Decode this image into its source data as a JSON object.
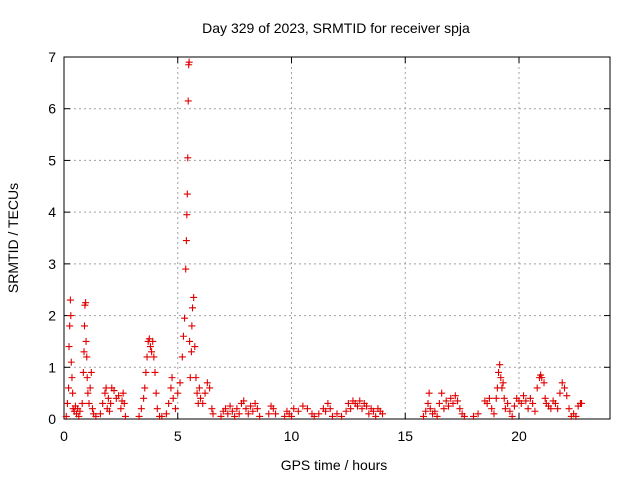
{
  "chart_data": {
    "type": "scatter",
    "title": "Day 329 of 2023, SRMTID for receiver spja",
    "xlabel": "GPS time / hours",
    "ylabel": "SRMTID / TECUs",
    "xlim": [
      0,
      24
    ],
    "ylim": [
      0,
      7
    ],
    "xticks": [
      0,
      5,
      10,
      15,
      20
    ],
    "yticks": [
      0,
      1,
      2,
      3,
      4,
      5,
      6,
      7
    ],
    "grid": true,
    "marker": "plus",
    "color": "#e00000",
    "series": [
      {
        "name": "SRMTID",
        "points": [
          [
            0.1,
            0.05
          ],
          [
            0.15,
            0.3
          ],
          [
            0.2,
            0.6
          ],
          [
            0.22,
            1.4
          ],
          [
            0.25,
            1.8
          ],
          [
            0.28,
            2.3
          ],
          [
            0.3,
            2.0
          ],
          [
            0.32,
            1.1
          ],
          [
            0.35,
            0.8
          ],
          [
            0.38,
            0.5
          ],
          [
            0.4,
            0.2
          ],
          [
            0.45,
            0.15
          ],
          [
            0.5,
            0.25
          ],
          [
            0.55,
            0.1
          ],
          [
            0.6,
            0.2
          ],
          [
            0.65,
            0.05
          ],
          [
            0.7,
            0.15
          ],
          [
            0.8,
            0.3
          ],
          [
            0.85,
            0.9
          ],
          [
            0.88,
            1.3
          ],
          [
            0.9,
            1.8
          ],
          [
            0.92,
            2.2
          ],
          [
            0.95,
            2.25
          ],
          [
            0.97,
            1.5
          ],
          [
            1.0,
            1.2
          ],
          [
            1.02,
            0.8
          ],
          [
            1.05,
            0.5
          ],
          [
            1.1,
            0.3
          ],
          [
            1.15,
            0.6
          ],
          [
            1.2,
            0.9
          ],
          [
            1.25,
            0.2
          ],
          [
            1.3,
            0.1
          ],
          [
            1.4,
            0.05
          ],
          [
            1.6,
            0.1
          ],
          [
            1.7,
            0.3
          ],
          [
            1.8,
            0.5
          ],
          [
            1.85,
            0.6
          ],
          [
            1.9,
            0.2
          ],
          [
            1.95,
            0.4
          ],
          [
            2.0,
            0.15
          ],
          [
            2.05,
            0.3
          ],
          [
            2.1,
            0.6
          ],
          [
            2.2,
            0.55
          ],
          [
            2.3,
            0.4
          ],
          [
            2.4,
            0.45
          ],
          [
            2.5,
            0.2
          ],
          [
            2.55,
            0.35
          ],
          [
            2.6,
            0.5
          ],
          [
            2.65,
            0.3
          ],
          [
            2.7,
            0.05
          ],
          [
            3.3,
            0.05
          ],
          [
            3.4,
            0.2
          ],
          [
            3.5,
            0.4
          ],
          [
            3.55,
            0.6
          ],
          [
            3.6,
            0.9
          ],
          [
            3.65,
            1.2
          ],
          [
            3.7,
            1.5
          ],
          [
            3.75,
            1.55
          ],
          [
            3.8,
            1.4
          ],
          [
            3.85,
            1.3
          ],
          [
            3.9,
            1.5
          ],
          [
            3.95,
            1.2
          ],
          [
            4.0,
            0.9
          ],
          [
            4.05,
            0.5
          ],
          [
            4.1,
            0.2
          ],
          [
            4.2,
            0.05
          ],
          [
            4.3,
            0.05
          ],
          [
            4.5,
            0.1
          ],
          [
            4.6,
            0.3
          ],
          [
            4.7,
            0.6
          ],
          [
            4.75,
            0.8
          ],
          [
            4.8,
            0.4
          ],
          [
            4.9,
            0.2
          ],
          [
            5.0,
            0.5
          ],
          [
            5.1,
            0.7
          ],
          [
            5.2,
            1.2
          ],
          [
            5.25,
            1.6
          ],
          [
            5.3,
            1.95
          ],
          [
            5.35,
            2.9
          ],
          [
            5.38,
            3.45
          ],
          [
            5.4,
            3.95
          ],
          [
            5.42,
            4.35
          ],
          [
            5.44,
            5.05
          ],
          [
            5.46,
            6.15
          ],
          [
            5.48,
            6.85
          ],
          [
            5.5,
            6.9
          ],
          [
            5.52,
            1.5
          ],
          [
            5.55,
            0.8
          ],
          [
            5.6,
            1.3
          ],
          [
            5.62,
            1.8
          ],
          [
            5.65,
            2.15
          ],
          [
            5.7,
            2.35
          ],
          [
            5.75,
            1.4
          ],
          [
            5.8,
            0.8
          ],
          [
            5.85,
            0.5
          ],
          [
            5.9,
            0.3
          ],
          [
            5.95,
            0.6
          ],
          [
            6.0,
            0.4
          ],
          [
            6.1,
            0.3
          ],
          [
            6.2,
            0.5
          ],
          [
            6.3,
            0.7
          ],
          [
            6.4,
            0.6
          ],
          [
            6.5,
            0.2
          ],
          [
            6.55,
            0.1
          ],
          [
            6.9,
            0.05
          ],
          [
            7.0,
            0.15
          ],
          [
            7.1,
            0.2
          ],
          [
            7.2,
            0.1
          ],
          [
            7.3,
            0.25
          ],
          [
            7.4,
            0.15
          ],
          [
            7.5,
            0.05
          ],
          [
            7.6,
            0.2
          ],
          [
            7.7,
            0.1
          ],
          [
            7.8,
            0.3
          ],
          [
            7.9,
            0.35
          ],
          [
            8.0,
            0.2
          ],
          [
            8.1,
            0.1
          ],
          [
            8.2,
            0.25
          ],
          [
            8.3,
            0.15
          ],
          [
            8.4,
            0.3
          ],
          [
            8.5,
            0.2
          ],
          [
            8.6,
            0.05
          ],
          [
            9.0,
            0.1
          ],
          [
            9.1,
            0.25
          ],
          [
            9.2,
            0.2
          ],
          [
            9.3,
            0.1
          ],
          [
            9.7,
            0.05
          ],
          [
            9.8,
            0.15
          ],
          [
            9.9,
            0.1
          ],
          [
            10.0,
            0.05
          ],
          [
            10.1,
            0.2
          ],
          [
            10.3,
            0.15
          ],
          [
            10.5,
            0.25
          ],
          [
            10.7,
            0.2
          ],
          [
            10.9,
            0.1
          ],
          [
            11.0,
            0.05
          ],
          [
            11.2,
            0.1
          ],
          [
            11.4,
            0.2
          ],
          [
            11.5,
            0.15
          ],
          [
            11.6,
            0.3
          ],
          [
            11.7,
            0.2
          ],
          [
            11.8,
            0.05
          ],
          [
            12.0,
            0.1
          ],
          [
            12.2,
            0.05
          ],
          [
            12.4,
            0.15
          ],
          [
            12.5,
            0.3
          ],
          [
            12.6,
            0.2
          ],
          [
            12.7,
            0.35
          ],
          [
            12.8,
            0.3
          ],
          [
            12.9,
            0.25
          ],
          [
            13.0,
            0.35
          ],
          [
            13.1,
            0.2
          ],
          [
            13.2,
            0.3
          ],
          [
            13.3,
            0.25
          ],
          [
            13.4,
            0.1
          ],
          [
            13.5,
            0.2
          ],
          [
            13.6,
            0.15
          ],
          [
            13.7,
            0.05
          ],
          [
            13.8,
            0.2
          ],
          [
            13.9,
            0.15
          ],
          [
            14.0,
            0.1
          ],
          [
            15.8,
            0.05
          ],
          [
            15.9,
            0.15
          ],
          [
            16.0,
            0.3
          ],
          [
            16.05,
            0.5
          ],
          [
            16.1,
            0.2
          ],
          [
            16.2,
            0.1
          ],
          [
            16.3,
            0.15
          ],
          [
            16.4,
            0.05
          ],
          [
            16.5,
            0.3
          ],
          [
            16.6,
            0.5
          ],
          [
            16.7,
            0.2
          ],
          [
            16.8,
            0.35
          ],
          [
            16.9,
            0.25
          ],
          [
            17.0,
            0.4
          ],
          [
            17.1,
            0.3
          ],
          [
            17.2,
            0.45
          ],
          [
            17.3,
            0.35
          ],
          [
            17.4,
            0.2
          ],
          [
            17.5,
            0.1
          ],
          [
            17.6,
            0.05
          ],
          [
            18.0,
            0.05
          ],
          [
            18.2,
            0.1
          ],
          [
            18.5,
            0.35
          ],
          [
            18.6,
            0.3
          ],
          [
            18.7,
            0.4
          ],
          [
            18.8,
            0.2
          ],
          [
            18.9,
            0.1
          ],
          [
            19.0,
            0.4
          ],
          [
            19.05,
            0.6
          ],
          [
            19.1,
            0.9
          ],
          [
            19.15,
            1.05
          ],
          [
            19.2,
            0.8
          ],
          [
            19.25,
            0.6
          ],
          [
            19.3,
            0.7
          ],
          [
            19.35,
            0.4
          ],
          [
            19.4,
            0.2
          ],
          [
            19.5,
            0.3
          ],
          [
            19.6,
            0.15
          ],
          [
            19.7,
            0.05
          ],
          [
            19.8,
            0.25
          ],
          [
            19.9,
            0.4
          ],
          [
            20.0,
            0.35
          ],
          [
            20.1,
            0.3
          ],
          [
            20.2,
            0.45
          ],
          [
            20.3,
            0.35
          ],
          [
            20.4,
            0.2
          ],
          [
            20.5,
            0.4
          ],
          [
            20.6,
            0.3
          ],
          [
            20.7,
            0.15
          ],
          [
            20.8,
            0.6
          ],
          [
            20.9,
            0.8
          ],
          [
            20.95,
            0.85
          ],
          [
            21.0,
            0.8
          ],
          [
            21.1,
            0.7
          ],
          [
            21.15,
            0.4
          ],
          [
            21.2,
            0.3
          ],
          [
            21.3,
            0.25
          ],
          [
            21.4,
            0.2
          ],
          [
            21.5,
            0.35
          ],
          [
            21.6,
            0.3
          ],
          [
            21.7,
            0.2
          ],
          [
            21.8,
            0.5
          ],
          [
            21.9,
            0.7
          ],
          [
            22.0,
            0.6
          ],
          [
            22.1,
            0.45
          ],
          [
            22.2,
            0.2
          ],
          [
            22.3,
            0.05
          ],
          [
            22.4,
            0.1
          ],
          [
            22.5,
            0.05
          ],
          [
            22.6,
            0.25
          ],
          [
            22.7,
            0.3
          ],
          [
            22.75,
            0.3
          ]
        ]
      }
    ]
  }
}
